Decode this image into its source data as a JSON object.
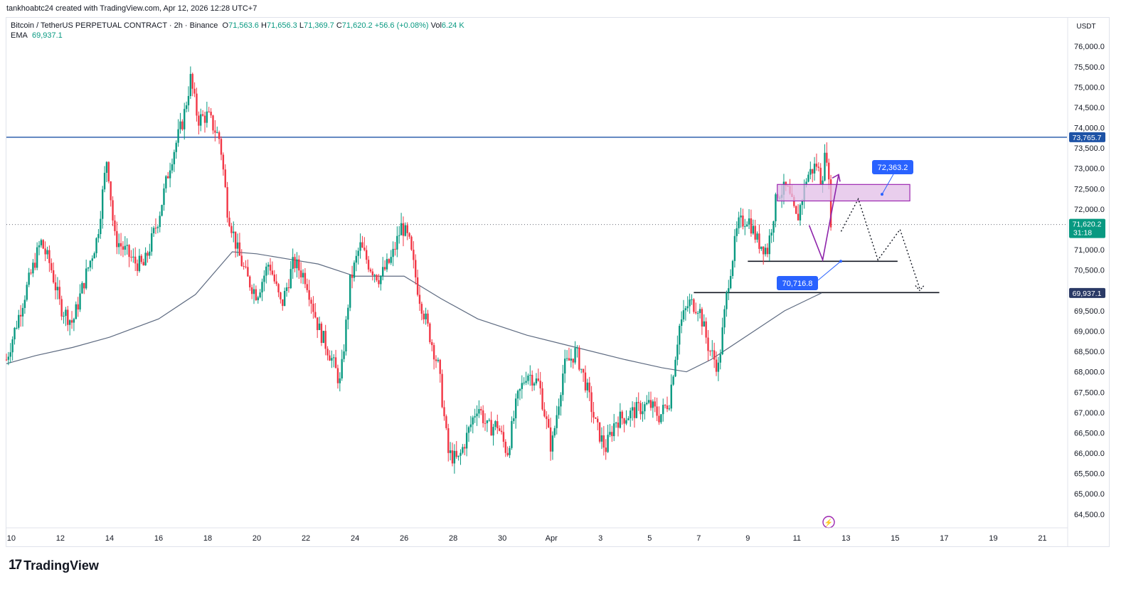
{
  "attribution": "tankhoabtc24 created with TradingView.com, Apr 12, 2026 12:28 UTC+7",
  "legend": {
    "symbol": "Bitcoin / TetherUS PERPETUAL CONTRACT · 2h · Binance",
    "o_label": "O",
    "o_value": "71,563.6",
    "h_label": "H",
    "h_value": "71,656.3",
    "l_label": "L",
    "l_value": "71,369.7",
    "c_label": "C",
    "c_value": "71,620.2",
    "change": "+56.6 (+0.08%)",
    "vol_label": "Vol",
    "vol_value": "6.24 K",
    "ema_label": "EMA",
    "ema_value": "69,937.1"
  },
  "currency": "USDT",
  "brand": {
    "logo": "17",
    "name": "TradingView"
  },
  "colors": {
    "up": "#089981",
    "down": "#f23645",
    "ema": "#5d6a80",
    "resistance": "#1e53a6",
    "badge_blue": "#2962ff",
    "zone": "#9c27b0",
    "current": "#089981"
  },
  "price_badges": {
    "resistance": "73,765.7",
    "current_price": "71,620.2",
    "countdown": "31:18",
    "ema": "69,937.1"
  },
  "annotations": {
    "zone_label": "72,363.2",
    "support_label": "70,716.8"
  },
  "chart_data": {
    "type": "candlestick",
    "y_axis": {
      "min": 64200,
      "max": 76300,
      "ticks": [
        64500,
        65000,
        65500,
        66000,
        66500,
        67000,
        67500,
        68000,
        68500,
        69000,
        69500,
        70000,
        70500,
        71000,
        71500,
        72000,
        72500,
        73000,
        73500,
        74000,
        74500,
        75000,
        75500,
        76000
      ],
      "tick_labels": [
        "64,500.0",
        "65,000.0",
        "65,500.0",
        "66,000.0",
        "66,500.0",
        "67,000.0",
        "67,500.0",
        "68,000.0",
        "68,500.0",
        "69,000.0",
        "69,500.0",
        "70,000.0",
        "70,500.0",
        "71,000.0",
        "71,500.0",
        "72,000.0",
        "72,500.0",
        "73,000.0",
        "73,500.0",
        "74,000.0",
        "74,500.0",
        "75,000.0",
        "75,500.0",
        "76,000.0"
      ]
    },
    "x_axis": {
      "tick_labels": [
        "10",
        "12",
        "14",
        "16",
        "18",
        "20",
        "22",
        "24",
        "26",
        "28",
        "30",
        "Apr",
        "3",
        "5",
        "7",
        "9",
        "11",
        "13",
        "15",
        "17",
        "19",
        "21"
      ],
      "tick_days": [
        10,
        12,
        14,
        16,
        18,
        20,
        22,
        24,
        26,
        28,
        30,
        32,
        34,
        36,
        38,
        40,
        42,
        44,
        46,
        48,
        50,
        52
      ],
      "day_range": [
        9.8,
        53.0
      ]
    },
    "price_path": [
      [
        9.8,
        68300
      ],
      [
        10.5,
        69800
      ],
      [
        11.2,
        71200
      ],
      [
        11.6,
        70600
      ],
      [
        12.0,
        69600
      ],
      [
        12.5,
        69200
      ],
      [
        13.0,
        70300
      ],
      [
        13.5,
        71300
      ],
      [
        13.9,
        73300
      ],
      [
        14.2,
        71300
      ],
      [
        14.6,
        71000
      ],
      [
        15.0,
        70700
      ],
      [
        15.4,
        70600
      ],
      [
        16.0,
        71800
      ],
      [
        16.5,
        73200
      ],
      [
        17.0,
        74200
      ],
      [
        17.3,
        75200
      ],
      [
        17.6,
        74200
      ],
      [
        18.0,
        74300
      ],
      [
        18.5,
        73700
      ],
      [
        18.8,
        72000
      ],
      [
        19.2,
        71000
      ],
      [
        19.6,
        70300
      ],
      [
        20.0,
        69900
      ],
      [
        20.5,
        70700
      ],
      [
        21.0,
        69600
      ],
      [
        21.5,
        70700
      ],
      [
        22.0,
        70300
      ],
      [
        22.5,
        69100
      ],
      [
        23.0,
        68400
      ],
      [
        23.4,
        67700
      ],
      [
        23.8,
        70200
      ],
      [
        24.2,
        71100
      ],
      [
        24.6,
        70600
      ],
      [
        25.0,
        70300
      ],
      [
        25.5,
        70800
      ],
      [
        25.9,
        71600
      ],
      [
        26.2,
        71200
      ],
      [
        26.6,
        69900
      ],
      [
        27.0,
        69000
      ],
      [
        27.4,
        68100
      ],
      [
        27.8,
        66000
      ],
      [
        28.2,
        65800
      ],
      [
        28.6,
        66500
      ],
      [
        29.0,
        67200
      ],
      [
        29.4,
        66600
      ],
      [
        29.8,
        66700
      ],
      [
        30.2,
        66000
      ],
      [
        30.6,
        67300
      ],
      [
        31.0,
        68000
      ],
      [
        31.5,
        67700
      ],
      [
        32.0,
        66100
      ],
      [
        32.5,
        68100
      ],
      [
        33.0,
        68500
      ],
      [
        33.4,
        67700
      ],
      [
        33.8,
        66700
      ],
      [
        34.2,
        66100
      ],
      [
        34.6,
        66800
      ],
      [
        35.0,
        66900
      ],
      [
        35.6,
        67100
      ],
      [
        36.0,
        67200
      ],
      [
        36.4,
        66900
      ],
      [
        36.8,
        67300
      ],
      [
        37.2,
        69100
      ],
      [
        37.6,
        69700
      ],
      [
        38.0,
        69600
      ],
      [
        38.4,
        68600
      ],
      [
        38.8,
        68100
      ],
      [
        39.2,
        70200
      ],
      [
        39.6,
        71600
      ],
      [
        40.0,
        71800
      ],
      [
        40.4,
        71200
      ],
      [
        40.8,
        71000
      ],
      [
        41.2,
        72400
      ],
      [
        41.6,
        72500
      ],
      [
        42.0,
        71700
      ],
      [
        42.4,
        72800
      ],
      [
        42.8,
        73100
      ],
      [
        43.0,
        72700
      ],
      [
        43.2,
        73500
      ],
      [
        43.4,
        71600
      ]
    ],
    "ema_path": [
      [
        9.8,
        68200
      ],
      [
        11.0,
        68400
      ],
      [
        12.5,
        68600
      ],
      [
        14.0,
        68850
      ],
      [
        16.0,
        69300
      ],
      [
        17.5,
        69900
      ],
      [
        18.5,
        70600
      ],
      [
        19.0,
        70950
      ],
      [
        20.0,
        70900
      ],
      [
        21.5,
        70750
      ],
      [
        22.5,
        70650
      ],
      [
        24.0,
        70350
      ],
      [
        26.0,
        70350
      ],
      [
        27.5,
        69800
      ],
      [
        29.0,
        69300
      ],
      [
        31.0,
        68900
      ],
      [
        33.0,
        68600
      ],
      [
        35.0,
        68300
      ],
      [
        36.5,
        68100
      ],
      [
        37.5,
        68000
      ],
      [
        38.5,
        68300
      ],
      [
        40.0,
        68900
      ],
      [
        41.5,
        69500
      ],
      [
        43.0,
        69937
      ]
    ],
    "levels": {
      "resistance": 73765.7,
      "current": 71620.2,
      "ema": 69937.1,
      "support_upper": 70716.8,
      "support_lower": 70000
    },
    "zone": {
      "day_start": 41.2,
      "day_end": 46.6,
      "price_top": 72500,
      "price_bottom": 72200
    }
  }
}
